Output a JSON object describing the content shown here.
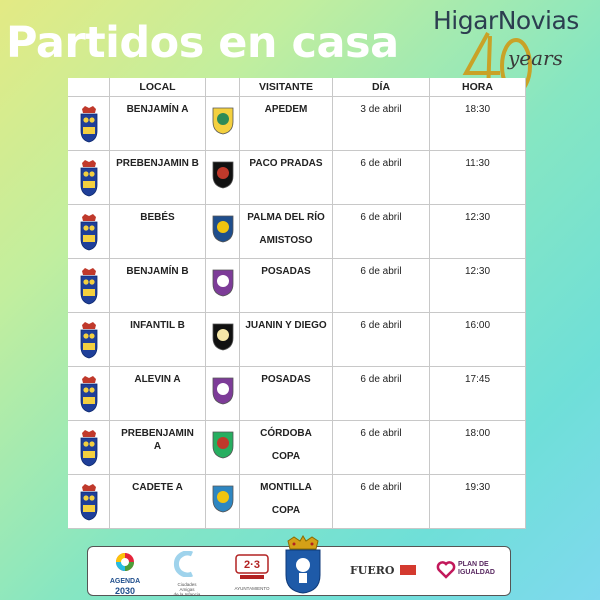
{
  "title": "Partidos en casa",
  "brand": {
    "name": "HigarNovias",
    "years": "years"
  },
  "table": {
    "headers": {
      "local": "LOCAL",
      "visitante": "VISITANTE",
      "dia": "DÍA",
      "hora": "HORA"
    },
    "rows": [
      {
        "local": "BENJAMÍN A",
        "visitante": [
          "APEDEM"
        ],
        "dia": "3 de abril",
        "hora": "18:30"
      },
      {
        "local": "PREBENJAMIN B",
        "visitante": [
          "PACO PRADAS"
        ],
        "dia": "6 de abril",
        "hora": "11:30"
      },
      {
        "local": "BEBÉS",
        "visitante": [
          "PALMA DEL RÍO",
          "AMISTOSO"
        ],
        "dia": "6 de abril",
        "hora": "12:30"
      },
      {
        "local": "BENJAMÍN B",
        "visitante": [
          "POSADAS"
        ],
        "dia": "6 de abril",
        "hora": "12:30"
      },
      {
        "local": "INFANTIL B",
        "visitante": [
          "JUANIN Y DIEGO"
        ],
        "dia": "6 de abril",
        "hora": "16:00"
      },
      {
        "local": "ALEVIN A",
        "visitante": [
          "POSADAS"
        ],
        "dia": "6 de abril",
        "hora": "17:45"
      },
      {
        "local": [
          "PREBENJAMIN",
          "A"
        ],
        "visitante": [
          "CÓRDOBA",
          "COPA"
        ],
        "dia": "6 de abril",
        "hora": "18:00"
      },
      {
        "local": "CADETE A",
        "visitante": [
          "MONTILLA",
          "COPA"
        ],
        "dia": "6 de abril",
        "hora": "19:30"
      }
    ]
  },
  "footer": {
    "agenda": [
      "AGENDA",
      "2030"
    ],
    "ciudades": [
      "Ciudades",
      "Amigas",
      "de la Infancia"
    ],
    "ayuntamiento": "AYUNTAMIENTO",
    "fuero": "FUERO",
    "plan": [
      "PLAN DE",
      "IGUALDAD"
    ]
  }
}
